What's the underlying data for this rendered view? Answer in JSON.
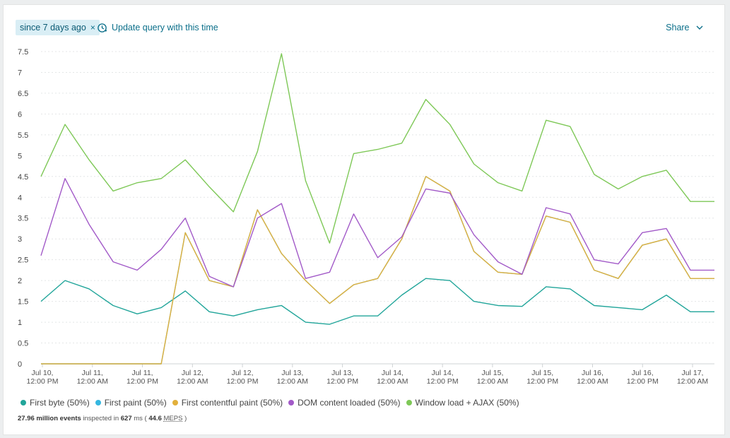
{
  "toolbar": {
    "time_chip": "since 7 days ago",
    "close_glyph": "×",
    "update_label": "Update query with this time",
    "share_label": "Share"
  },
  "icons": {
    "close": "close-icon",
    "clock": "clock-update-icon",
    "chevron": "chevron-down-icon"
  },
  "chart_data": {
    "type": "line",
    "ylim": [
      0,
      7.5
    ],
    "yticks": [
      "0",
      "0.5",
      "1",
      "1.5",
      "2",
      "2.5",
      "3",
      "3.5",
      "4",
      "4.5",
      "5",
      "5.5",
      "6",
      "6.5",
      "7",
      "7.5"
    ],
    "x": [
      0,
      1,
      2,
      3,
      4,
      5,
      6,
      7,
      8,
      9,
      10,
      11,
      12,
      13,
      14,
      15,
      16,
      17,
      18,
      19,
      20,
      21,
      22,
      23,
      24,
      25,
      26,
      27,
      28
    ],
    "x_tick_positions": [
      0,
      2.67,
      5.33,
      8,
      10.67,
      13.33,
      16,
      18.67,
      21.33,
      24,
      26.67,
      29.33,
      32,
      34.67
    ],
    "x_tick_labels": [
      [
        "Jul 10,",
        "12:00 PM"
      ],
      [
        "Jul 11,",
        "12:00 AM"
      ],
      [
        "Jul 11,",
        "12:00 PM"
      ],
      [
        "Jul 12,",
        "12:00 AM"
      ],
      [
        "Jul 12,",
        "12:00 PM"
      ],
      [
        "Jul 13,",
        "12:00 AM"
      ],
      [
        "Jul 13,",
        "12:00 PM"
      ],
      [
        "Jul 14,",
        "12:00 AM"
      ],
      [
        "Jul 14,",
        "12:00 PM"
      ],
      [
        "Jul 15,",
        "12:00 AM"
      ],
      [
        "Jul 15,",
        "12:00 PM"
      ],
      [
        "Jul 16,",
        "12:00 AM"
      ],
      [
        "Jul 16,",
        "12:00 PM"
      ],
      [
        "Jul 17,",
        "12:00 AM"
      ]
    ],
    "series": [
      {
        "name": "First byte (50%)",
        "color": "#21a59a",
        "values": [
          1.5,
          2.0,
          1.8,
          1.4,
          1.2,
          1.35,
          1.75,
          1.25,
          1.15,
          1.3,
          1.4,
          1.0,
          0.95,
          1.15,
          1.15,
          1.65,
          2.05,
          2.0,
          1.5,
          1.4,
          1.38,
          1.85,
          1.8,
          1.4,
          1.35,
          1.3,
          1.65,
          1.25,
          1.25
        ]
      },
      {
        "name": "First paint (50%)",
        "color": "#35b7e0",
        "values": [
          0,
          0,
          0,
          0,
          0,
          0,
          3.15,
          2.0,
          1.85,
          3.7,
          2.65,
          2.0,
          1.45,
          1.9,
          2.05,
          3.0,
          4.5,
          4.15,
          2.7,
          2.2,
          2.15,
          3.55,
          3.4,
          2.25,
          2.05,
          2.85,
          3.0,
          2.05,
          2.05
        ]
      },
      {
        "name": "First contentful paint (50%)",
        "color": "#e2b03b",
        "values": [
          0,
          0,
          0,
          0,
          0,
          0,
          3.15,
          2.0,
          1.85,
          3.7,
          2.65,
          2.0,
          1.45,
          1.9,
          2.05,
          3.0,
          4.5,
          4.15,
          2.7,
          2.2,
          2.15,
          3.55,
          3.4,
          2.25,
          2.05,
          2.85,
          3.0,
          2.05,
          2.05
        ]
      },
      {
        "name": "DOM content loaded (50%)",
        "color": "#a25ac8",
        "values": [
          2.6,
          4.45,
          3.35,
          2.45,
          2.25,
          2.75,
          3.5,
          2.1,
          1.85,
          3.5,
          3.85,
          2.05,
          2.2,
          3.6,
          2.55,
          3.05,
          4.2,
          4.1,
          3.1,
          2.45,
          2.15,
          3.75,
          3.6,
          2.5,
          2.4,
          3.15,
          3.25,
          2.25,
          2.25
        ]
      },
      {
        "name": "Window load + AJAX (50%)",
        "color": "#7ec857",
        "values": [
          4.5,
          5.75,
          4.9,
          4.15,
          4.35,
          4.45,
          4.9,
          4.25,
          3.65,
          5.1,
          7.45,
          4.4,
          2.9,
          5.05,
          5.15,
          5.3,
          6.35,
          5.75,
          4.8,
          4.35,
          4.15,
          5.85,
          5.7,
          4.55,
          4.2,
          4.5,
          4.65,
          3.9,
          3.9
        ]
      }
    ]
  },
  "footer": {
    "events": "27.96 million events",
    "inspected": "inspected in",
    "ms_value": "627",
    "ms_unit": "ms (",
    "meps_value": "44.6",
    "meps_unit": "MEPS",
    "close_paren": ")"
  }
}
